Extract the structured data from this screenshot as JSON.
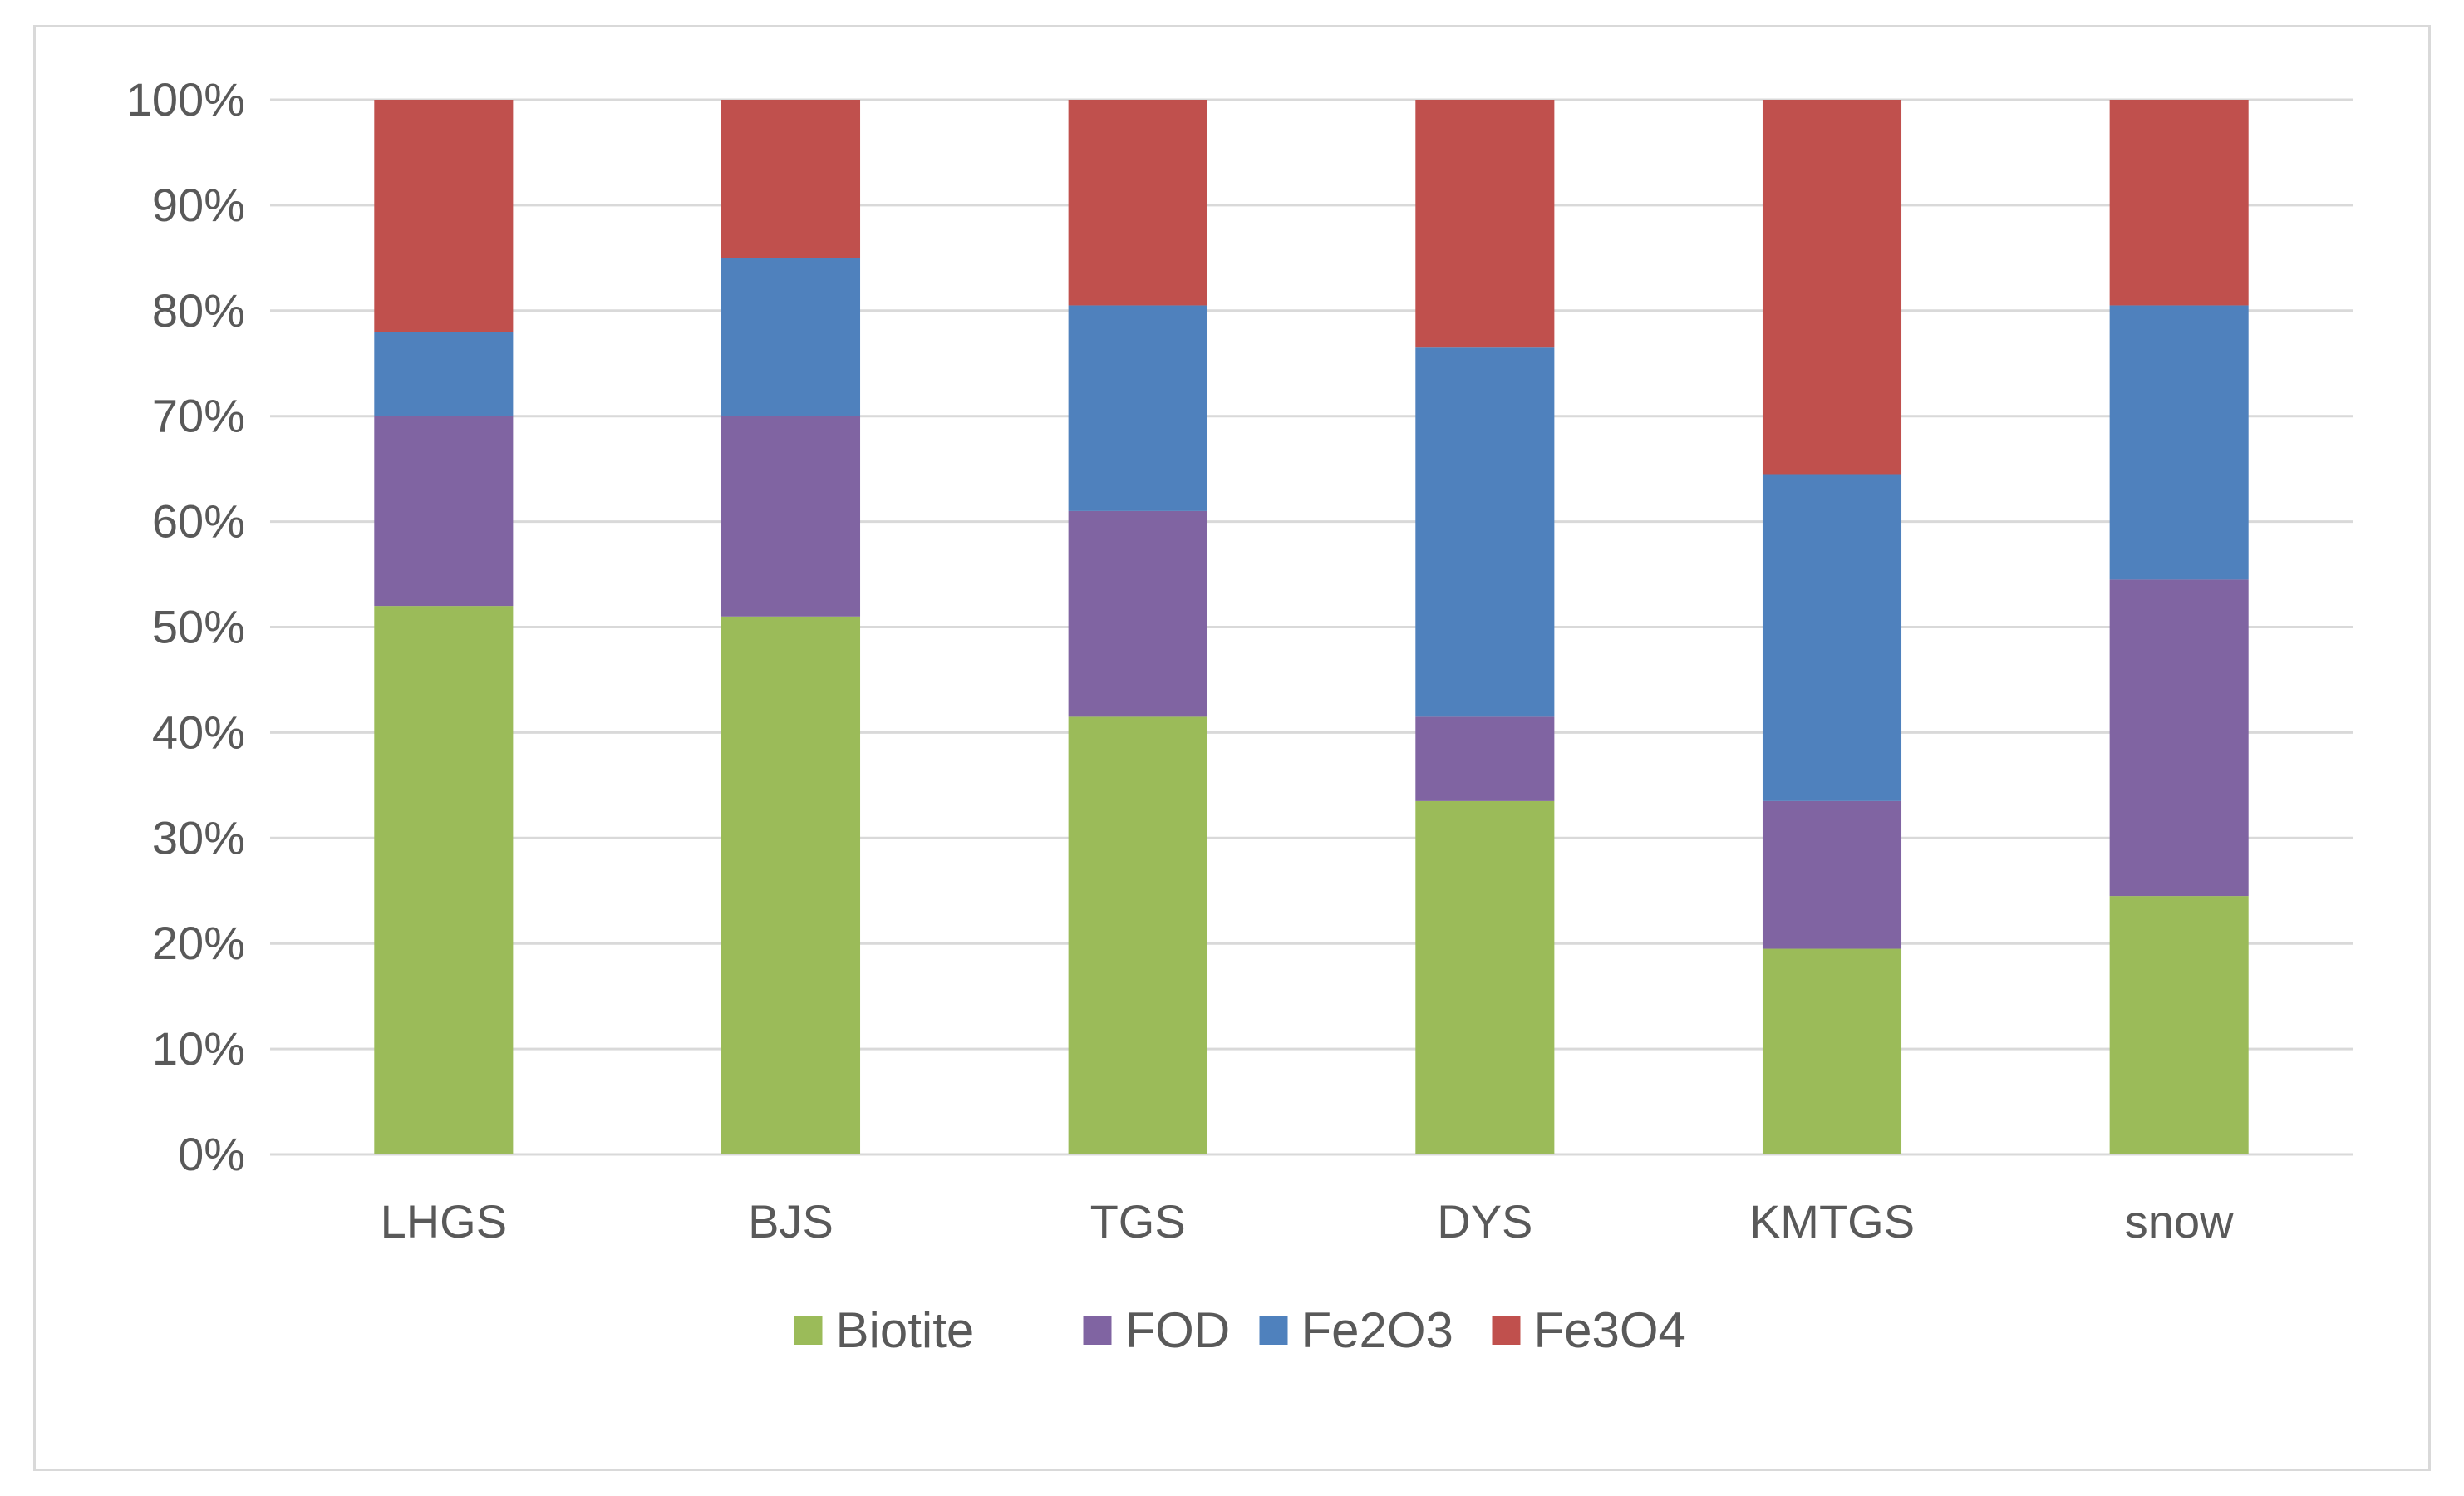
{
  "chart_data": {
    "type": "bar",
    "stacked": "percent",
    "title": "",
    "xlabel": "",
    "ylabel": "",
    "ylim": [
      0,
      100
    ],
    "y_ticks": [
      "0%",
      "10%",
      "20%",
      "30%",
      "40%",
      "50%",
      "60%",
      "70%",
      "80%",
      "90%",
      "100%"
    ],
    "grid": true,
    "legend_position": "bottom",
    "categories": [
      "LHGS",
      "BJS",
      "TGS",
      "DYS",
      "KMTGS",
      "snow"
    ],
    "series": [
      {
        "name": "Biotite",
        "color": "#9bbb59",
        "values": [
          52,
          51,
          41.5,
          33.5,
          19.5,
          24.5
        ]
      },
      {
        "name": "FOD",
        "color": "#8064a2",
        "values": [
          18,
          19,
          19.5,
          8,
          14,
          30
        ]
      },
      {
        "name": "Fe2O3",
        "color": "#4f81bd",
        "values": [
          8,
          15,
          19.5,
          35,
          31,
          26
        ]
      },
      {
        "name": "Fe3O4",
        "color": "#c0504d",
        "values": [
          22,
          15,
          19.5,
          23.5,
          35.5,
          19.5
        ]
      }
    ]
  }
}
